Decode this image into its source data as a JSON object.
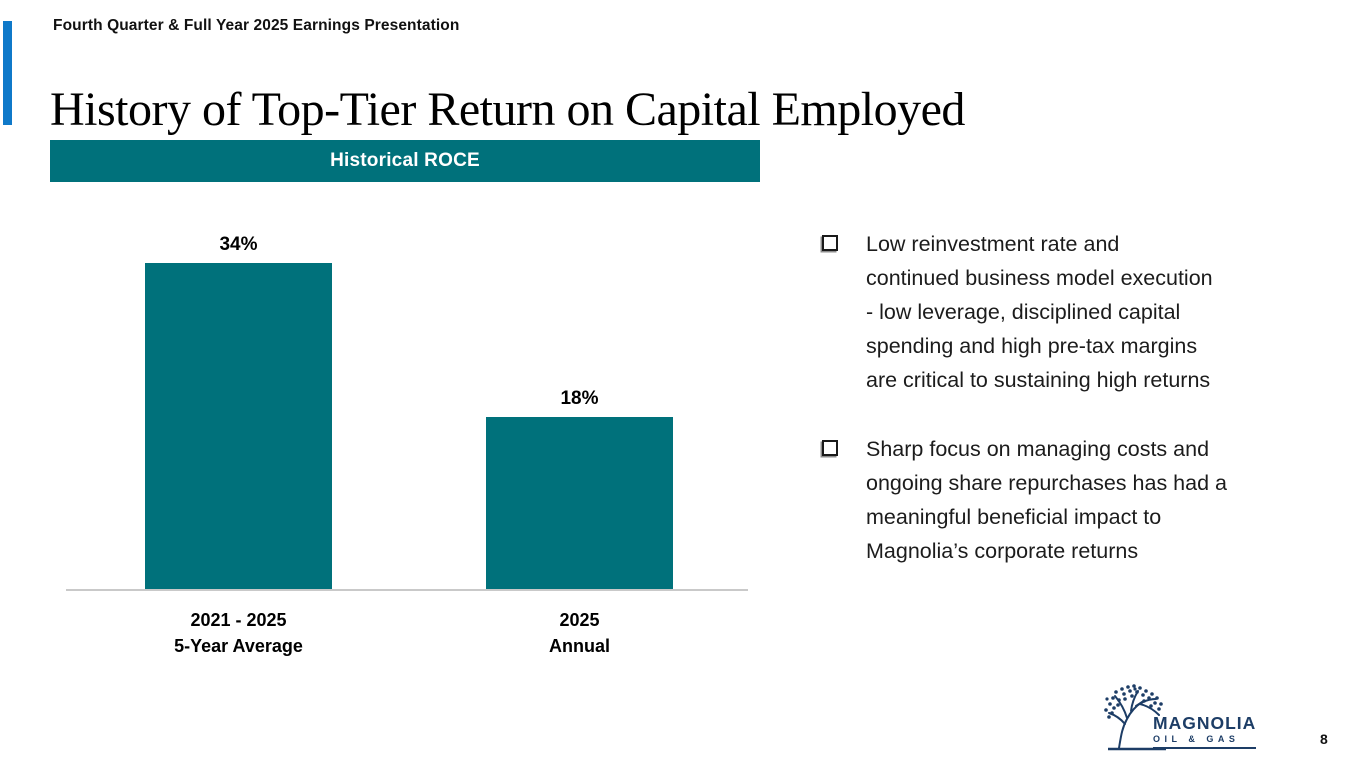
{
  "slide": {
    "eyebrow": "Fourth Quarter & Full Year 2025 Earnings Presentation",
    "title": "History of Top-Tier Return on Capital Employed",
    "page_number": "8"
  },
  "chart_data": {
    "type": "bar",
    "title": "Historical ROCE",
    "categories": [
      "2021 - 2025 5-Year Average",
      "2025 Annual"
    ],
    "values": [
      34,
      18
    ],
    "unit": "%",
    "data_labels": [
      "34%",
      "18%"
    ],
    "xlabel": "",
    "ylabel": "",
    "ylim": [
      0,
      40
    ],
    "grid": false,
    "legend": false,
    "bar_color": "#00717b",
    "axis_line_color": "#c9c9c9"
  },
  "chart": {
    "banner_label": "Historical ROCE",
    "bars": [
      {
        "value_label": "34%",
        "category_lines": [
          "2021 - 2025",
          "5-Year Average"
        ]
      },
      {
        "value_label": "18%",
        "category_lines": [
          "2025",
          "Annual"
        ]
      }
    ]
  },
  "bullets": [
    {
      "lines": [
        "Low reinvestment rate and",
        "continued business model execution",
        "- low leverage, disciplined capital",
        "spending and high pre-tax margins",
        "are critical to sustaining high returns"
      ]
    },
    {
      "lines": [
        "Sharp focus on managing costs and",
        "ongoing share repurchases has had a",
        "meaningful beneficial impact to",
        "Magnolia’s corporate returns"
      ]
    }
  ],
  "logo": {
    "name": "MAGNOLIA",
    "tagline": "OIL & GAS"
  },
  "colors": {
    "teal": "#00717b",
    "accent_blue": "#0f79c9",
    "navy": "#1d3d66",
    "axis_gray": "#c9c9c9"
  }
}
